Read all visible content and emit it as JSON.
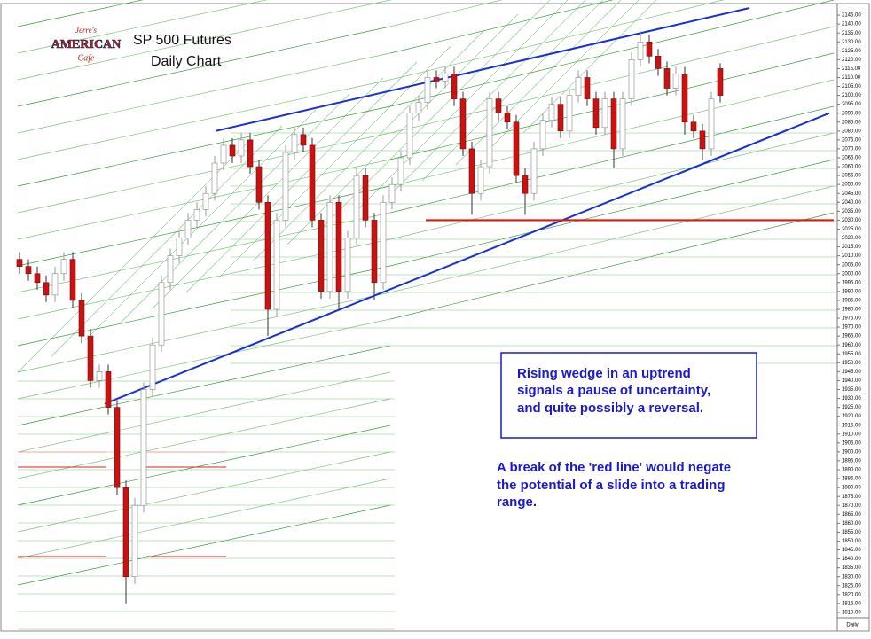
{
  "chart_data": {
    "type": "candlestick",
    "title": "SP 500 Futures",
    "subtitle": "Daily Chart",
    "logo": {
      "top": "Jerre's",
      "middle": "AMERICAN",
      "bottom": "Cafe"
    },
    "period_label": "Daily",
    "annotations": [
      [
        "Rising wedge in an uptrend",
        "signals a pause of uncertainty,",
        "and quite possibly a reversal."
      ],
      [
        "A break of the 'red line' would negate",
        "the potential of a slide into a trading",
        "range."
      ]
    ],
    "up_color": "#ffffff",
    "down_color": "#cc1111",
    "open": [
      2008,
      2004,
      2000,
      1995,
      1988,
      2000,
      2008,
      1985,
      1965,
      1940,
      1945,
      1925,
      1880,
      1830,
      1870,
      1935,
      1960,
      1995,
      2010,
      2020,
      2030,
      2036,
      2045,
      2062,
      2072,
      2066,
      2075,
      2060,
      2040,
      1980,
      2030,
      2068,
      2078,
      2072,
      2030,
      1990,
      2040,
      1990,
      2020,
      2055,
      2030,
      1995,
      2040,
      2050,
      2065,
      2090,
      2096,
      2110,
      2108,
      2112,
      2098,
      2070,
      2045,
      2060,
      2098,
      2090,
      2085,
      2055,
      2045,
      2070,
      2086,
      2095,
      2080,
      2100,
      2110,
      2098,
      2082,
      2098,
      2070,
      2098,
      2120,
      2130,
      2122,
      2115,
      2104,
      2112,
      2085,
      2080,
      2070,
      2115
    ],
    "high": [
      2012,
      2008,
      2004,
      1999,
      2004,
      2012,
      2012,
      1989,
      1969,
      1949,
      1949,
      1929,
      1884,
      1874,
      1939,
      1964,
      1999,
      2014,
      2024,
      2034,
      2040,
      2049,
      2066,
      2076,
      2076,
      2079,
      2079,
      2064,
      2044,
      2034,
      2072,
      2082,
      2082,
      2076,
      2034,
      2044,
      2044,
      2024,
      2059,
      2059,
      2034,
      2044,
      2054,
      2069,
      2094,
      2100,
      2114,
      2114,
      2116,
      2116,
      2102,
      2074,
      2064,
      2102,
      2102,
      2094,
      2089,
      2059,
      2074,
      2090,
      2099,
      2099,
      2104,
      2114,
      2114,
      2102,
      2102,
      2102,
      2102,
      2124,
      2136,
      2134,
      2126,
      2119,
      2116,
      2116,
      2089,
      2084,
      2102,
      2118
    ],
    "low": [
      2000,
      1996,
      1991,
      1984,
      1984,
      1996,
      1981,
      1961,
      1936,
      1936,
      1921,
      1876,
      1815,
      1826,
      1866,
      1931,
      1956,
      1991,
      2006,
      2016,
      2026,
      2032,
      2041,
      2058,
      2062,
      2062,
      2056,
      2036,
      1965,
      1976,
      2026,
      2064,
      2068,
      2026,
      1986,
      1986,
      1980,
      1986,
      2016,
      2026,
      1985,
      1991,
      2036,
      2046,
      2061,
      2086,
      2092,
      2104,
      2104,
      2094,
      2066,
      2033,
      2041,
      2056,
      2086,
      2081,
      2051,
      2033,
      2041,
      2066,
      2082,
      2076,
      2076,
      2096,
      2094,
      2078,
      2078,
      2059,
      2066,
      2094,
      2116,
      2118,
      2111,
      2100,
      2100,
      2078,
      2076,
      2064,
      2066,
      2096
    ],
    "close": [
      2004,
      2000,
      1995,
      1988,
      2000,
      2008,
      1985,
      1965,
      1940,
      1945,
      1925,
      1880,
      1830,
      1870,
      1935,
      1960,
      1995,
      2010,
      2020,
      2030,
      2036,
      2045,
      2062,
      2072,
      2066,
      2075,
      2060,
      2040,
      1980,
      2030,
      2068,
      2078,
      2072,
      2030,
      1990,
      2040,
      1990,
      2020,
      2055,
      2030,
      1995,
      2040,
      2050,
      2065,
      2090,
      2096,
      2110,
      2108,
      2112,
      2098,
      2070,
      2045,
      2060,
      2098,
      2090,
      2085,
      2055,
      2045,
      2070,
      2086,
      2095,
      2080,
      2100,
      2110,
      2098,
      2082,
      2098,
      2070,
      2098,
      2120,
      2130,
      2122,
      2115,
      2104,
      2112,
      2085,
      2080,
      2070,
      2098,
      2100
    ],
    "trendlines": [
      {
        "color": "#1a2fd0",
        "x": [
          22.1,
          82.3
        ],
        "values": [
          2080,
          2149
        ]
      },
      {
        "color": "#1a2fd0",
        "x": [
          9.6,
          91.3
        ],
        "values": [
          1927,
          2090
        ]
      },
      {
        "color": "#ee1111",
        "x": [
          45.8,
          91.8
        ],
        "values": [
          2030,
          2030
        ]
      }
    ],
    "ylim": [
      1803,
      2151
    ],
    "yticks": [
      {
        "value": 2145,
        "label": "2145.00"
      },
      {
        "value": 2140,
        "label": "2140.00"
      },
      {
        "value": 2135,
        "label": "2135.00"
      },
      {
        "value": 2130,
        "label": "2130.00"
      },
      {
        "value": 2125,
        "label": "2125.00"
      },
      {
        "value": 2120,
        "label": "2120.00"
      },
      {
        "value": 2115,
        "label": "2115.00"
      },
      {
        "value": 2110,
        "label": "2110.00"
      },
      {
        "value": 2105,
        "label": "2105.00"
      },
      {
        "value": 2100,
        "label": "2100.00"
      },
      {
        "value": 2095,
        "label": "2095.00"
      },
      {
        "value": 2090,
        "label": "2090.00"
      },
      {
        "value": 2085,
        "label": "2085.00"
      },
      {
        "value": 2080,
        "label": "2080.00"
      },
      {
        "value": 2075,
        "label": "2075.00"
      },
      {
        "value": 2070,
        "label": "2070.00"
      },
      {
        "value": 2065,
        "label": "2065.00"
      },
      {
        "value": 2060,
        "label": "2060.00"
      },
      {
        "value": 2055,
        "label": "2055.00"
      },
      {
        "value": 2050,
        "label": "2050.00"
      },
      {
        "value": 2045,
        "label": "2045.00"
      },
      {
        "value": 2040,
        "label": "2040.00"
      },
      {
        "value": 2035,
        "label": "2035.00"
      },
      {
        "value": 2030,
        "label": "2030.00"
      },
      {
        "value": 2025,
        "label": "2025.00"
      },
      {
        "value": 2020,
        "label": "2020.00"
      },
      {
        "value": 2015,
        "label": "2015.00"
      },
      {
        "value": 2010,
        "label": "2010.00"
      },
      {
        "value": 2005,
        "label": "2005.00"
      },
      {
        "value": 2000,
        "label": "2000.00"
      },
      {
        "value": 1995,
        "label": "1995.00"
      },
      {
        "value": 1990,
        "label": "1990.00"
      },
      {
        "value": 1985,
        "label": "1985.00"
      },
      {
        "value": 1980,
        "label": "1980.00"
      },
      {
        "value": 1975,
        "label": "1975.00"
      },
      {
        "value": 1970,
        "label": "1970.00"
      },
      {
        "value": 1965,
        "label": "1965.00"
      },
      {
        "value": 1960,
        "label": "1960.00"
      },
      {
        "value": 1955,
        "label": "1955.00"
      },
      {
        "value": 1950,
        "label": "1950.00"
      },
      {
        "value": 1945,
        "label": "1945.00"
      },
      {
        "value": 1940,
        "label": "1940.00"
      },
      {
        "value": 1935,
        "label": "1935.00"
      },
      {
        "value": 1930,
        "label": "1930.00"
      },
      {
        "value": 1925,
        "label": "1925.00"
      },
      {
        "value": 1920,
        "label": "1920.00"
      },
      {
        "value": 1915,
        "label": "1915.00"
      },
      {
        "value": 1910,
        "label": "1910.00"
      },
      {
        "value": 1905,
        "label": "1905.00"
      },
      {
        "value": 1900,
        "label": "1900.00"
      },
      {
        "value": 1895,
        "label": "1895.00"
      },
      {
        "value": 1890,
        "label": "1890.00"
      },
      {
        "value": 1885,
        "label": "1885.00"
      },
      {
        "value": 1880,
        "label": "1880.00"
      },
      {
        "value": 1875,
        "label": "1875.00"
      },
      {
        "value": 1870,
        "label": "1870.00"
      },
      {
        "value": 1865,
        "label": "1865.00"
      },
      {
        "value": 1860,
        "label": "1860.00"
      },
      {
        "value": 1855,
        "label": "1855.00"
      },
      {
        "value": 1850,
        "label": "1850.00"
      },
      {
        "value": 1845,
        "label": "1845.00"
      },
      {
        "value": 1840,
        "label": "1840.00"
      },
      {
        "value": 1835,
        "label": "1835.00"
      },
      {
        "value": 1830,
        "label": "1830.00"
      },
      {
        "value": 1825,
        "label": "1825.00"
      },
      {
        "value": 1820,
        "label": "1820.00"
      },
      {
        "value": 1815,
        "label": "1815.00"
      },
      {
        "value": 1810,
        "label": "1810.00"
      }
    ]
  }
}
